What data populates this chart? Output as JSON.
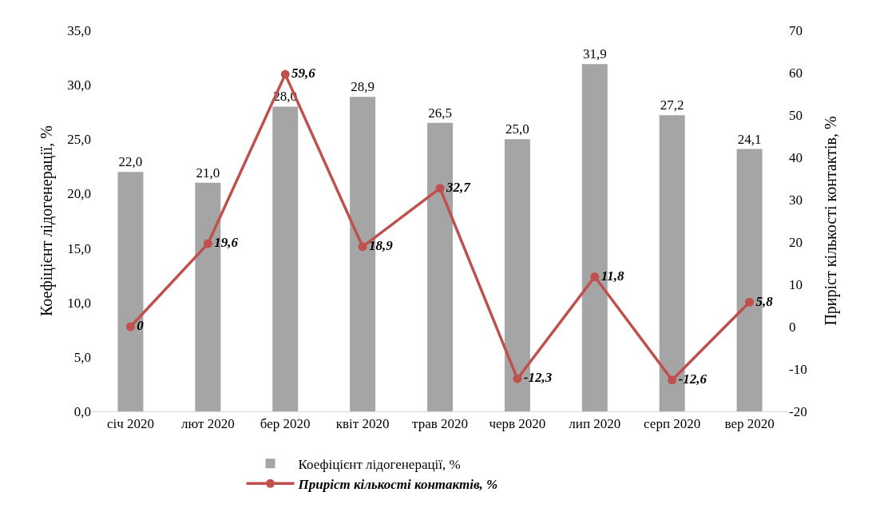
{
  "chart_data": {
    "type": "bar",
    "categories": [
      "січ 2020",
      "лют 2020",
      "бер 2020",
      "квіт 2020",
      "трав 2020",
      "черв 2020",
      "лип 2020",
      "серп 2020",
      "вер 2020"
    ],
    "ylabel": "Коефіцієнт лідогенерації, %",
    "y2label": "Приріст кількості контактів, %",
    "series": [
      {
        "name": "Коефіцієнт лідогенерації, %",
        "color": "#a5a5a5",
        "values": [
          22.0,
          21.0,
          28.0,
          28.9,
          26.5,
          25.0,
          31.9,
          27.2,
          24.1
        ],
        "value_labels": [
          "22,0",
          "21,0",
          "28,0",
          "28,9",
          "26,5",
          "25,0",
          "31,9",
          "27,2",
          "24,1"
        ]
      },
      {
        "name": "Приріст кількості контактів, %",
        "type": "line",
        "axis": "y2",
        "color": "#c0504d",
        "marker": "circle",
        "values": [
          0,
          19.6,
          59.6,
          18.9,
          32.7,
          -12.3,
          11.8,
          -12.6,
          5.8
        ],
        "value_labels": [
          "0",
          "19,6",
          "59,6",
          "18,9",
          "32,7",
          "-12,3",
          "11,8",
          "-12,6",
          "5,8"
        ]
      }
    ],
    "ylim": [
      0,
      35
    ],
    "yticks": [
      {
        "value": 0,
        "label": "0,0"
      },
      {
        "value": 5,
        "label": "5,0"
      },
      {
        "value": 10,
        "label": "10,0"
      },
      {
        "value": 15,
        "label": "15,0"
      },
      {
        "value": 20,
        "label": "20,0"
      },
      {
        "value": 25,
        "label": "25,0"
      },
      {
        "value": 30,
        "label": "30,0"
      },
      {
        "value": 35,
        "label": "35,0"
      }
    ],
    "y2lim": [
      -20,
      70
    ],
    "y2ticks": [
      -20,
      -10,
      0,
      10,
      20,
      30,
      40,
      50,
      60,
      70
    ],
    "grid": false,
    "legend": "bottom"
  }
}
